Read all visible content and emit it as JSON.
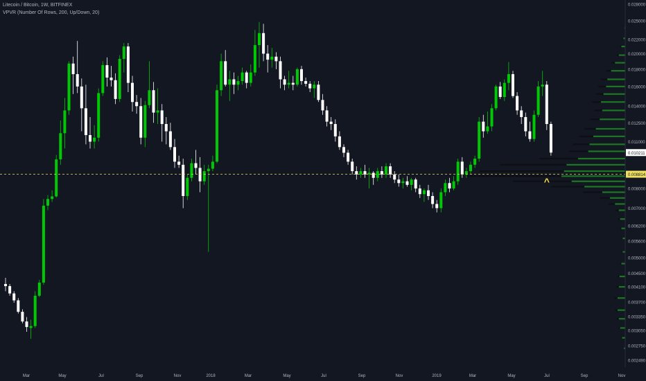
{
  "header": {
    "symbol_line": "Litecoin / Bitcoin, 1W, BITFINEX",
    "indicator_line": "VPVR (Number Of Rows, 200, Up/Down, 20)"
  },
  "colors": {
    "background": "#131722",
    "up": "#00c805",
    "down": "#ffffff",
    "vp_up": "#1f8a23",
    "vp_down": "#0d0f14",
    "vp_line": "#2a7d2f",
    "axis_text": "#b2b5be",
    "last_price_bg": "#ffffff",
    "reference_price_bg": "#f0e060",
    "marker": "#f5e04f"
  },
  "chart_data": {
    "type": "candlestick",
    "title": "Litecoin / Bitcoin, 1W, BITFINEX",
    "ylim": [
      0.00249,
      0.028
    ],
    "y_scale": "log",
    "y_ticks": [
      "0.028000",
      "0.025000",
      "0.022000",
      "0.020000",
      "0.018000",
      "0.016000",
      "0.014000",
      "0.012500",
      "0.011000",
      "0.010211",
      "0.008814",
      "0.008000",
      "0.007000",
      "0.006200",
      "0.005600",
      "0.005000",
      "0.004500",
      "0.004100",
      "0.003700",
      "0.003350",
      "0.003050",
      "0.002750",
      "0.002490"
    ],
    "x_ticks": [
      "Mar",
      "May",
      "Jul",
      "Sep",
      "Nov",
      "2018",
      "Mar",
      "May",
      "Jul",
      "Sep",
      "Nov",
      "2019",
      "Mar",
      "May",
      "Jul",
      "Sep",
      "Nov"
    ],
    "candle_x_start": "2017-02-01",
    "candle_interval_weeks": 1,
    "candles": [
      {
        "o": 0.00418,
        "h": 0.00436,
        "l": 0.00398,
        "c": 0.00412
      },
      {
        "o": 0.00412,
        "h": 0.00418,
        "l": 0.00386,
        "c": 0.00392
      },
      {
        "o": 0.00392,
        "h": 0.00398,
        "l": 0.00368,
        "c": 0.00374
      },
      {
        "o": 0.00374,
        "h": 0.0038,
        "l": 0.00342,
        "c": 0.00346
      },
      {
        "o": 0.00346,
        "h": 0.00352,
        "l": 0.0032,
        "c": 0.00324
      },
      {
        "o": 0.00324,
        "h": 0.00334,
        "l": 0.00302,
        "c": 0.00312
      },
      {
        "o": 0.0031,
        "h": 0.00328,
        "l": 0.00288,
        "c": 0.00314
      },
      {
        "o": 0.00314,
        "h": 0.00398,
        "l": 0.0031,
        "c": 0.00386
      },
      {
        "o": 0.00386,
        "h": 0.0043,
        "l": 0.00382,
        "c": 0.00422
      },
      {
        "o": 0.00422,
        "h": 0.00745,
        "l": 0.00416,
        "c": 0.00712
      },
      {
        "o": 0.00712,
        "h": 0.00765,
        "l": 0.0069,
        "c": 0.00745
      },
      {
        "o": 0.00745,
        "h": 0.0079,
        "l": 0.0073,
        "c": 0.00758
      },
      {
        "o": 0.00758,
        "h": 0.01005,
        "l": 0.00752,
        "c": 0.00975
      },
      {
        "o": 0.00975,
        "h": 0.0127,
        "l": 0.0094,
        "c": 0.01165
      },
      {
        "o": 0.01165,
        "h": 0.0148,
        "l": 0.0105,
        "c": 0.0136
      },
      {
        "o": 0.0136,
        "h": 0.019,
        "l": 0.0132,
        "c": 0.0187
      },
      {
        "o": 0.0187,
        "h": 0.0196,
        "l": 0.0152,
        "c": 0.0174
      },
      {
        "o": 0.0174,
        "h": 0.0218,
        "l": 0.0153,
        "c": 0.016
      },
      {
        "o": 0.016,
        "h": 0.0169,
        "l": 0.0118,
        "c": 0.0138
      },
      {
        "o": 0.0138,
        "h": 0.0162,
        "l": 0.0108,
        "c": 0.0115
      },
      {
        "o": 0.0115,
        "h": 0.013,
        "l": 0.0105,
        "c": 0.011
      },
      {
        "o": 0.011,
        "h": 0.0123,
        "l": 0.0105,
        "c": 0.0113
      },
      {
        "o": 0.0113,
        "h": 0.0158,
        "l": 0.011,
        "c": 0.0153
      },
      {
        "o": 0.0153,
        "h": 0.019,
        "l": 0.015,
        "c": 0.0185
      },
      {
        "o": 0.0185,
        "h": 0.0195,
        "l": 0.016,
        "c": 0.017
      },
      {
        "o": 0.017,
        "h": 0.0184,
        "l": 0.016,
        "c": 0.0167
      },
      {
        "o": 0.0167,
        "h": 0.0175,
        "l": 0.0142,
        "c": 0.0147
      },
      {
        "o": 0.0147,
        "h": 0.0198,
        "l": 0.0144,
        "c": 0.0193
      },
      {
        "o": 0.0193,
        "h": 0.0215,
        "l": 0.0176,
        "c": 0.021
      },
      {
        "o": 0.021,
        "h": 0.0215,
        "l": 0.0154,
        "c": 0.0164
      },
      {
        "o": 0.0164,
        "h": 0.0172,
        "l": 0.0135,
        "c": 0.0144
      },
      {
        "o": 0.0144,
        "h": 0.0151,
        "l": 0.0133,
        "c": 0.014
      },
      {
        "o": 0.014,
        "h": 0.0148,
        "l": 0.0108,
        "c": 0.0113
      },
      {
        "o": 0.0113,
        "h": 0.0145,
        "l": 0.0106,
        "c": 0.0141
      },
      {
        "o": 0.0141,
        "h": 0.019,
        "l": 0.0138,
        "c": 0.0156
      },
      {
        "o": 0.0156,
        "h": 0.0165,
        "l": 0.0125,
        "c": 0.0134
      },
      {
        "o": 0.0134,
        "h": 0.0158,
        "l": 0.0124,
        "c": 0.0136
      },
      {
        "o": 0.0136,
        "h": 0.0142,
        "l": 0.011,
        "c": 0.0124
      },
      {
        "o": 0.0124,
        "h": 0.013,
        "l": 0.0108,
        "c": 0.0118
      },
      {
        "o": 0.0118,
        "h": 0.0125,
        "l": 0.0104,
        "c": 0.0106
      },
      {
        "o": 0.0106,
        "h": 0.0112,
        "l": 0.0092,
        "c": 0.0096
      },
      {
        "o": 0.0096,
        "h": 0.01,
        "l": 0.0092,
        "c": 0.0094
      },
      {
        "o": 0.0094,
        "h": 0.0098,
        "l": 0.007,
        "c": 0.0076
      },
      {
        "o": 0.0076,
        "h": 0.0088,
        "l": 0.0074,
        "c": 0.0086
      },
      {
        "o": 0.0086,
        "h": 0.0098,
        "l": 0.0084,
        "c": 0.0095
      },
      {
        "o": 0.0095,
        "h": 0.0104,
        "l": 0.0088,
        "c": 0.0092
      },
      {
        "o": 0.0092,
        "h": 0.0099,
        "l": 0.0078,
        "c": 0.0084
      },
      {
        "o": 0.0084,
        "h": 0.0094,
        "l": 0.0082,
        "c": 0.009
      },
      {
        "o": 0.009,
        "h": 0.0094,
        "l": 0.0052,
        "c": 0.00915
      },
      {
        "o": 0.00915,
        "h": 0.01,
        "l": 0.009,
        "c": 0.0096
      },
      {
        "o": 0.0096,
        "h": 0.0162,
        "l": 0.0095,
        "c": 0.0156
      },
      {
        "o": 0.0156,
        "h": 0.02,
        "l": 0.015,
        "c": 0.019
      },
      {
        "o": 0.019,
        "h": 0.0205,
        "l": 0.016,
        "c": 0.0162
      },
      {
        "o": 0.0162,
        "h": 0.0178,
        "l": 0.0145,
        "c": 0.0168
      },
      {
        "o": 0.0168,
        "h": 0.0176,
        "l": 0.0152,
        "c": 0.0162
      },
      {
        "o": 0.0162,
        "h": 0.0172,
        "l": 0.0156,
        "c": 0.0166
      },
      {
        "o": 0.0166,
        "h": 0.0182,
        "l": 0.0162,
        "c": 0.0176
      },
      {
        "o": 0.0176,
        "h": 0.0178,
        "l": 0.0158,
        "c": 0.0164
      },
      {
        "o": 0.0164,
        "h": 0.0186,
        "l": 0.016,
        "c": 0.0176
      },
      {
        "o": 0.0176,
        "h": 0.0235,
        "l": 0.0172,
        "c": 0.0212
      },
      {
        "o": 0.0212,
        "h": 0.0248,
        "l": 0.0182,
        "c": 0.023
      },
      {
        "o": 0.023,
        "h": 0.0245,
        "l": 0.019,
        "c": 0.02
      },
      {
        "o": 0.02,
        "h": 0.0212,
        "l": 0.0176,
        "c": 0.0192
      },
      {
        "o": 0.0192,
        "h": 0.0208,
        "l": 0.0182,
        "c": 0.0196
      },
      {
        "o": 0.0196,
        "h": 0.0202,
        "l": 0.018,
        "c": 0.019
      },
      {
        "o": 0.019,
        "h": 0.0196,
        "l": 0.0158,
        "c": 0.0168
      },
      {
        "o": 0.0168,
        "h": 0.0172,
        "l": 0.0156,
        "c": 0.0162
      },
      {
        "o": 0.0162,
        "h": 0.0178,
        "l": 0.0158,
        "c": 0.0164
      },
      {
        "o": 0.0164,
        "h": 0.0172,
        "l": 0.0156,
        "c": 0.0162
      },
      {
        "o": 0.0162,
        "h": 0.0182,
        "l": 0.016,
        "c": 0.018
      },
      {
        "o": 0.018,
        "h": 0.0184,
        "l": 0.0162,
        "c": 0.0166
      },
      {
        "o": 0.0166,
        "h": 0.017,
        "l": 0.016,
        "c": 0.0163
      },
      {
        "o": 0.0163,
        "h": 0.0166,
        "l": 0.0154,
        "c": 0.0158
      },
      {
        "o": 0.0158,
        "h": 0.0166,
        "l": 0.0148,
        "c": 0.0162
      },
      {
        "o": 0.0162,
        "h": 0.0166,
        "l": 0.0144,
        "c": 0.0146
      },
      {
        "o": 0.0146,
        "h": 0.0152,
        "l": 0.0132,
        "c": 0.0136
      },
      {
        "o": 0.0136,
        "h": 0.014,
        "l": 0.0122,
        "c": 0.0126
      },
      {
        "o": 0.0126,
        "h": 0.013,
        "l": 0.0119,
        "c": 0.0124
      },
      {
        "o": 0.0124,
        "h": 0.0128,
        "l": 0.011,
        "c": 0.0114
      },
      {
        "o": 0.0114,
        "h": 0.0118,
        "l": 0.0104,
        "c": 0.0106
      },
      {
        "o": 0.0106,
        "h": 0.0108,
        "l": 0.0099,
        "c": 0.0102
      },
      {
        "o": 0.0102,
        "h": 0.0104,
        "l": 0.0094,
        "c": 0.0096
      },
      {
        "o": 0.0096,
        "h": 0.0098,
        "l": 0.0088,
        "c": 0.009
      },
      {
        "o": 0.009,
        "h": 0.0093,
        "l": 0.0085,
        "c": 0.0088
      },
      {
        "o": 0.0088,
        "h": 0.0092,
        "l": 0.0086,
        "c": 0.009
      },
      {
        "o": 0.009,
        "h": 0.0094,
        "l": 0.0086,
        "c": 0.0088
      },
      {
        "o": 0.0088,
        "h": 0.0092,
        "l": 0.008,
        "c": 0.0089
      },
      {
        "o": 0.0089,
        "h": 0.009,
        "l": 0.0082,
        "c": 0.0086
      },
      {
        "o": 0.0086,
        "h": 0.0092,
        "l": 0.0084,
        "c": 0.009
      },
      {
        "o": 0.009,
        "h": 0.0093,
        "l": 0.0086,
        "c": 0.0088
      },
      {
        "o": 0.0088,
        "h": 0.0095,
        "l": 0.0086,
        "c": 0.0093
      },
      {
        "o": 0.0093,
        "h": 0.0095,
        "l": 0.0086,
        "c": 0.0088
      },
      {
        "o": 0.0088,
        "h": 0.009,
        "l": 0.0083,
        "c": 0.0085
      },
      {
        "o": 0.0085,
        "h": 0.0088,
        "l": 0.0081,
        "c": 0.0083
      },
      {
        "o": 0.0083,
        "h": 0.0086,
        "l": 0.008,
        "c": 0.0084
      },
      {
        "o": 0.0084,
        "h": 0.0087,
        "l": 0.0081,
        "c": 0.0082
      },
      {
        "o": 0.0082,
        "h": 0.0086,
        "l": 0.0079,
        "c": 0.0085
      },
      {
        "o": 0.0085,
        "h": 0.0086,
        "l": 0.0078,
        "c": 0.008
      },
      {
        "o": 0.008,
        "h": 0.0082,
        "l": 0.0075,
        "c": 0.0077
      },
      {
        "o": 0.0077,
        "h": 0.008,
        "l": 0.0073,
        "c": 0.0079
      },
      {
        "o": 0.0079,
        "h": 0.0082,
        "l": 0.0074,
        "c": 0.0076
      },
      {
        "o": 0.0076,
        "h": 0.0078,
        "l": 0.007,
        "c": 0.0072
      },
      {
        "o": 0.0072,
        "h": 0.0074,
        "l": 0.0068,
        "c": 0.007
      },
      {
        "o": 0.007,
        "h": 0.008,
        "l": 0.0068,
        "c": 0.0078
      },
      {
        "o": 0.0078,
        "h": 0.0085,
        "l": 0.0076,
        "c": 0.0083
      },
      {
        "o": 0.0083,
        "h": 0.0086,
        "l": 0.0078,
        "c": 0.008
      },
      {
        "o": 0.008,
        "h": 0.0087,
        "l": 0.0079,
        "c": 0.0084
      },
      {
        "o": 0.0084,
        "h": 0.0098,
        "l": 0.0082,
        "c": 0.0096
      },
      {
        "o": 0.0096,
        "h": 0.0099,
        "l": 0.0086,
        "c": 0.0088
      },
      {
        "o": 0.0088,
        "h": 0.0092,
        "l": 0.0086,
        "c": 0.009
      },
      {
        "o": 0.009,
        "h": 0.0096,
        "l": 0.0088,
        "c": 0.0094
      },
      {
        "o": 0.0094,
        "h": 0.01,
        "l": 0.0092,
        "c": 0.0098
      },
      {
        "o": 0.0098,
        "h": 0.013,
        "l": 0.0096,
        "c": 0.0126
      },
      {
        "o": 0.0126,
        "h": 0.0132,
        "l": 0.0113,
        "c": 0.0118
      },
      {
        "o": 0.0118,
        "h": 0.0135,
        "l": 0.0116,
        "c": 0.0122
      },
      {
        "o": 0.0122,
        "h": 0.0142,
        "l": 0.0118,
        "c": 0.0138
      },
      {
        "o": 0.0138,
        "h": 0.0162,
        "l": 0.0136,
        "c": 0.016
      },
      {
        "o": 0.016,
        "h": 0.0165,
        "l": 0.0147,
        "c": 0.0149
      },
      {
        "o": 0.0149,
        "h": 0.0168,
        "l": 0.0145,
        "c": 0.0164
      },
      {
        "o": 0.0164,
        "h": 0.0189,
        "l": 0.0156,
        "c": 0.0174
      },
      {
        "o": 0.0174,
        "h": 0.0178,
        "l": 0.0148,
        "c": 0.015
      },
      {
        "o": 0.015,
        "h": 0.0154,
        "l": 0.0132,
        "c": 0.0136
      },
      {
        "o": 0.0136,
        "h": 0.014,
        "l": 0.0124,
        "c": 0.013
      },
      {
        "o": 0.013,
        "h": 0.0134,
        "l": 0.0114,
        "c": 0.0118
      },
      {
        "o": 0.0118,
        "h": 0.0126,
        "l": 0.011,
        "c": 0.0112
      },
      {
        "o": 0.0112,
        "h": 0.0136,
        "l": 0.011,
        "c": 0.0132
      },
      {
        "o": 0.0132,
        "h": 0.0166,
        "l": 0.013,
        "c": 0.016
      },
      {
        "o": 0.016,
        "h": 0.0178,
        "l": 0.015,
        "c": 0.0162
      },
      {
        "o": 0.0162,
        "h": 0.0166,
        "l": 0.0119,
        "c": 0.0124
      },
      {
        "o": 0.0124,
        "h": 0.0126,
        "l": 0.01,
        "c": 0.01021
      }
    ],
    "volume_profile": [
      {
        "price": 0.0238,
        "up": 1,
        "down": 0
      },
      {
        "price": 0.0222,
        "up": 3,
        "down": 1
      },
      {
        "price": 0.021,
        "up": 6,
        "down": 2
      },
      {
        "price": 0.0198,
        "up": 10,
        "down": 3
      },
      {
        "price": 0.0188,
        "up": 16,
        "down": 5
      },
      {
        "price": 0.0178,
        "up": 22,
        "down": 8
      },
      {
        "price": 0.0168,
        "up": 28,
        "down": 10
      },
      {
        "price": 0.016,
        "up": 30,
        "down": 12
      },
      {
        "price": 0.0152,
        "up": 34,
        "down": 12
      },
      {
        "price": 0.0144,
        "up": 38,
        "down": 14
      },
      {
        "price": 0.0136,
        "up": 36,
        "down": 12
      },
      {
        "price": 0.0128,
        "up": 40,
        "down": 14
      },
      {
        "price": 0.012,
        "up": 46,
        "down": 18
      },
      {
        "price": 0.0114,
        "up": 50,
        "down": 22
      },
      {
        "price": 0.0108,
        "up": 56,
        "down": 26
      },
      {
        "price": 0.0103,
        "up": 58,
        "down": 30
      },
      {
        "price": 0.0098,
        "up": 74,
        "down": 60
      },
      {
        "price": 0.0094,
        "up": 92,
        "down": 104
      },
      {
        "price": 0.009,
        "up": 96,
        "down": 132
      },
      {
        "price": 0.0087,
        "up": 100,
        "down": 150
      },
      {
        "price": 0.0084,
        "up": 84,
        "down": 92
      },
      {
        "price": 0.0081,
        "up": 64,
        "down": 52
      },
      {
        "price": 0.0078,
        "up": 36,
        "down": 30
      },
      {
        "price": 0.0075,
        "up": 24,
        "down": 16
      },
      {
        "price": 0.0072,
        "up": 16,
        "down": 10
      },
      {
        "price": 0.0069,
        "up": 10,
        "down": 5
      },
      {
        "price": 0.0065,
        "up": 8,
        "down": 3
      },
      {
        "price": 0.0061,
        "up": 6,
        "down": 2
      },
      {
        "price": 0.0057,
        "up": 4,
        "down": 1
      },
      {
        "price": 0.0052,
        "up": 4,
        "down": 1
      },
      {
        "price": 0.0048,
        "up": 6,
        "down": 2
      },
      {
        "price": 0.0044,
        "up": 9,
        "down": 3
      },
      {
        "price": 0.0041,
        "up": 10,
        "down": 4
      },
      {
        "price": 0.0038,
        "up": 12,
        "down": 5
      },
      {
        "price": 0.0035,
        "up": 12,
        "down": 4
      },
      {
        "price": 0.0033,
        "up": 10,
        "down": 3
      },
      {
        "price": 0.0031,
        "up": 8,
        "down": 2
      },
      {
        "price": 0.0029,
        "up": 5,
        "down": 1
      },
      {
        "price": 0.0027,
        "up": 2,
        "down": 0
      }
    ],
    "last_price": 0.010211,
    "last_price_label": "0.010211",
    "reference_line_price": 0.008814,
    "reference_line_label": "0.008814",
    "marker_glyph": "^",
    "marker_price": 0.0085,
    "marker_week": 128,
    "grid": false,
    "legend": "top-left"
  }
}
